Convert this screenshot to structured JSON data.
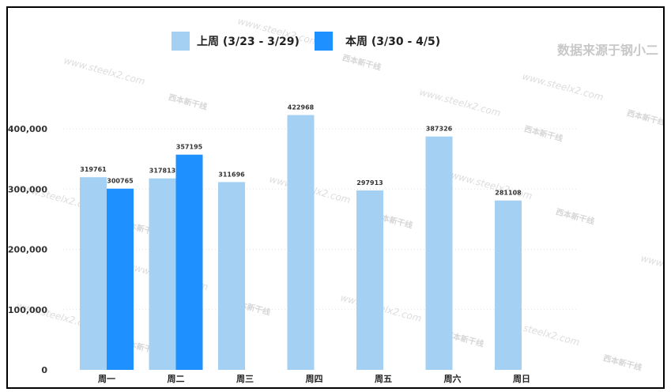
{
  "chart_data": {
    "type": "bar",
    "categories": [
      "周一",
      "周二",
      "周三",
      "周四",
      "周五",
      "周六",
      "周日"
    ],
    "series": [
      {
        "name": "上周 (3/23 - 3/29)",
        "color": "#a3d0f3",
        "values": [
          319761,
          317813,
          311696,
          422968,
          297913,
          387326,
          281108
        ],
        "labels": [
          "319761",
          "317813",
          "311696",
          "422968",
          "297913",
          "387326",
          "281108"
        ]
      },
      {
        "name": "本周 (3/30 - 4/5)",
        "color": "#1e90ff",
        "values": [
          300765,
          357195,
          null,
          null,
          null,
          null,
          null
        ],
        "labels": [
          "300765",
          "357195",
          "",
          "",
          "",
          "",
          ""
        ]
      }
    ],
    "yticks": [
      0,
      100000,
      200000,
      300000,
      400000
    ],
    "ytick_labels": [
      "0",
      "100,000",
      "200,000",
      "300,000",
      "400,000"
    ],
    "ylim": [
      0,
      425000
    ],
    "legend_position": "top-center",
    "grid": "horizontal-dotted",
    "source_note": "数据来源于钢小二",
    "watermark": {
      "url": "www.steelx2.com",
      "brand": "西本新干线"
    }
  }
}
